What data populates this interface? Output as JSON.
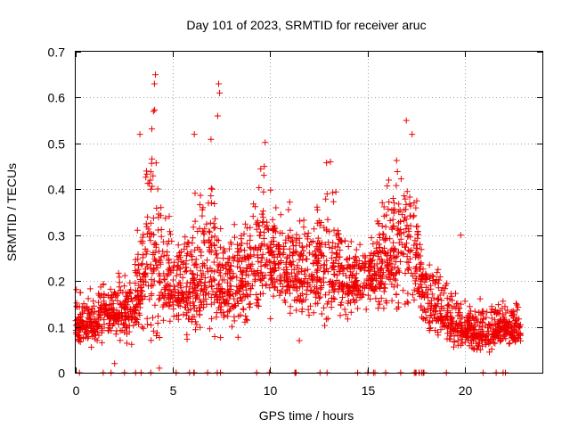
{
  "chart_data": {
    "type": "scatter",
    "title": "Day 101 of 2023, SRMTID for receiver aruc",
    "xlabel": "GPS time / hours",
    "ylabel": "SRMTID / TECUs",
    "xlim": [
      0,
      24
    ],
    "ylim": [
      0,
      0.7
    ],
    "xticks": [
      0,
      5,
      10,
      15,
      20
    ],
    "xtick_labels": [
      "0",
      "5",
      "10",
      "15",
      "20"
    ],
    "yticks": [
      0,
      0.1,
      0.2,
      0.3,
      0.4,
      0.5,
      0.6,
      0.7
    ],
    "ytick_labels": [
      "0",
      "0.1",
      "0.2",
      "0.3",
      "0.4",
      "0.5",
      "0.6",
      "0.7"
    ],
    "grid": true,
    "marker": "plus",
    "series": [
      {
        "name": "SRMTID",
        "color": "#ee0000",
        "envelope": {
          "description": "Approximate median and upper spread of the dense point cloud versus GPS hour",
          "hours": [
            0.0,
            1.0,
            2.0,
            3.0,
            3.5,
            4.0,
            4.5,
            5.0,
            6.0,
            6.5,
            7.0,
            7.5,
            8.0,
            9.0,
            9.5,
            10.0,
            10.5,
            11.0,
            12.0,
            13.0,
            13.5,
            14.0,
            15.0,
            16.0,
            16.5,
            17.0,
            17.5,
            18.0,
            18.5,
            19.0,
            20.0,
            21.0,
            22.0,
            23.0
          ],
          "median": [
            0.1,
            0.11,
            0.13,
            0.13,
            0.22,
            0.28,
            0.22,
            0.18,
            0.18,
            0.2,
            0.22,
            0.18,
            0.18,
            0.2,
            0.26,
            0.27,
            0.23,
            0.21,
            0.21,
            0.23,
            0.22,
            0.19,
            0.2,
            0.24,
            0.26,
            0.28,
            0.24,
            0.16,
            0.14,
            0.12,
            0.09,
            0.08,
            0.1,
            0.09
          ],
          "spread": [
            0.03,
            0.04,
            0.04,
            0.05,
            0.1,
            0.16,
            0.1,
            0.05,
            0.08,
            0.1,
            0.12,
            0.06,
            0.07,
            0.08,
            0.1,
            0.09,
            0.06,
            0.06,
            0.07,
            0.1,
            0.08,
            0.05,
            0.05,
            0.08,
            0.1,
            0.12,
            0.08,
            0.05,
            0.05,
            0.04,
            0.03,
            0.03,
            0.03,
            0.03
          ]
        },
        "notable_points": [
          {
            "x": 4.1,
            "y": 0.65
          },
          {
            "x": 4.05,
            "y": 0.63
          },
          {
            "x": 4.0,
            "y": 0.57
          },
          {
            "x": 7.35,
            "y": 0.63
          },
          {
            "x": 7.4,
            "y": 0.61
          },
          {
            "x": 7.3,
            "y": 0.56
          },
          {
            "x": 6.1,
            "y": 0.52
          },
          {
            "x": 3.3,
            "y": 0.52
          },
          {
            "x": 17.0,
            "y": 0.55
          },
          {
            "x": 17.3,
            "y": 0.52
          },
          {
            "x": 9.7,
            "y": 0.45
          },
          {
            "x": 13.1,
            "y": 0.46
          },
          {
            "x": 16.1,
            "y": 0.42
          },
          {
            "x": 19.8,
            "y": 0.3
          },
          {
            "x": 11.5,
            "y": 0.07
          },
          {
            "x": 2.0,
            "y": 0.02
          },
          {
            "x": 4.3,
            "y": 0.01
          },
          {
            "x": 22.1,
            "y": 0.0
          }
        ],
        "point_count_approx": 2600,
        "hour_range": [
          0,
          22.9
        ]
      }
    ]
  }
}
